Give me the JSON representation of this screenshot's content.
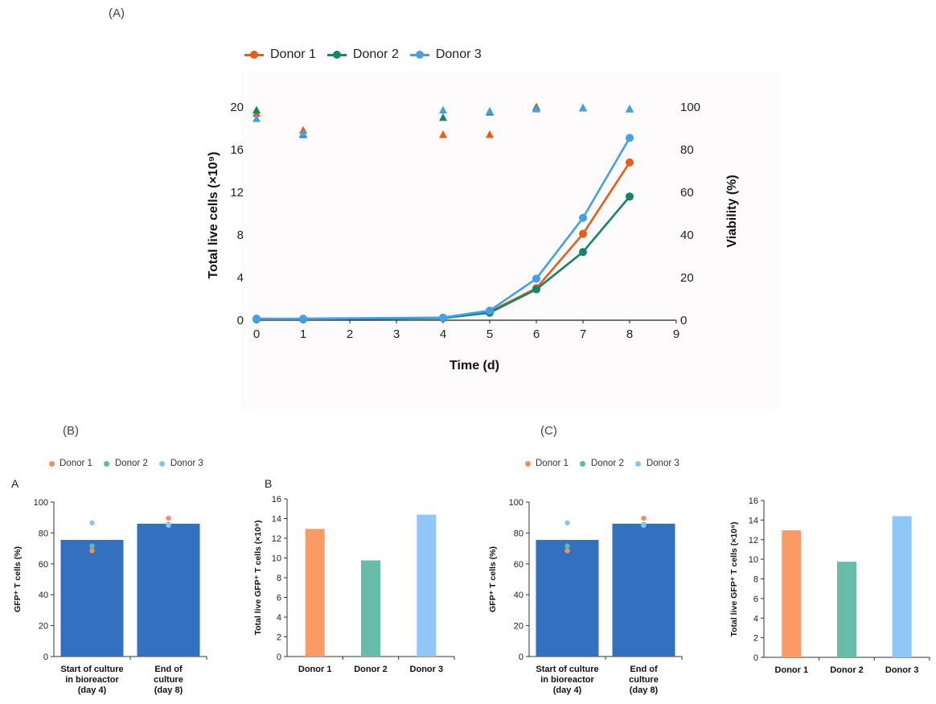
{
  "labels": {
    "a": "(A)",
    "b": "(B)",
    "c": "(C)",
    "b_sub_a": "A",
    "b_sub_b": "B"
  },
  "chart_data": [
    {
      "id": "A",
      "type": "line",
      "xlabel": "Time (d)",
      "ylabel": "Total live cells (×10⁹)",
      "y2label": "Viability (%)",
      "xlim": [
        0,
        9
      ],
      "ylim": [
        0,
        20
      ],
      "y2lim": [
        0,
        100
      ],
      "xticks": [
        0,
        1,
        2,
        3,
        4,
        5,
        6,
        7,
        8,
        9
      ],
      "yticks": [
        0,
        4,
        8,
        12,
        16,
        20
      ],
      "y2ticks": [
        0,
        20,
        40,
        60,
        80,
        100
      ],
      "legend_position": "top",
      "series": [
        {
          "name": "Donor 1",
          "color": "#ea5b17",
          "x": [
            0,
            1,
            4,
            5,
            6,
            7,
            8
          ],
          "values": [
            0.1,
            0.1,
            0.2,
            0.8,
            3.0,
            8.1,
            14.8
          ],
          "viability_x": [
            0,
            1,
            4,
            5,
            6,
            7,
            8
          ],
          "viability": [
            97,
            89,
            87,
            87,
            100,
            99.5,
            99
          ]
        },
        {
          "name": "Donor 2",
          "color": "#138668",
          "x": [
            0,
            1,
            4,
            5,
            6,
            7,
            8
          ],
          "values": [
            0.1,
            0.1,
            0.2,
            0.7,
            2.9,
            6.4,
            11.6
          ],
          "viability_x": [
            0,
            1,
            4,
            5,
            6,
            7,
            8
          ],
          "viability": [
            98.5,
            87,
            95,
            97.5,
            99.5,
            99.5,
            99
          ]
        },
        {
          "name": "Donor 3",
          "color": "#43a1eb",
          "x": [
            0,
            1,
            4,
            5,
            6,
            7,
            8
          ],
          "values": [
            0.15,
            0.15,
            0.25,
            0.9,
            3.9,
            9.6,
            17.1
          ],
          "viability_x": [
            0,
            1,
            4,
            5,
            6,
            7,
            8
          ],
          "viability": [
            94.5,
            87.5,
            98.5,
            98,
            99,
            99.5,
            99
          ]
        }
      ]
    },
    {
      "id": "B-A",
      "type": "bar",
      "ylabel": "GFP⁺ T cells (%)",
      "ylim": [
        0,
        100
      ],
      "yticks": [
        0,
        20,
        40,
        60,
        80,
        100
      ],
      "categories": [
        [
          "Start of culture",
          "in bioreactor",
          "(day 4)"
        ],
        [
          "End of",
          "culture",
          "(day 8)"
        ]
      ],
      "values": [
        75.5,
        86
      ],
      "bar_color": "#3371c0",
      "legend_position": "top",
      "points": [
        {
          "name": "Donor 1",
          "color": "#f98f56",
          "values": [
            68.5,
            89.5
          ]
        },
        {
          "name": "Donor 2",
          "color": "#5bbe9d",
          "values": [
            71.5,
            85.5
          ]
        },
        {
          "name": "Donor 3",
          "color": "#89c4f8",
          "values": [
            86.5,
            85
          ]
        }
      ]
    },
    {
      "id": "B-B",
      "type": "bar",
      "ylabel": "Total live GFP⁺ T cells (×10⁹)",
      "ylim": [
        0,
        16
      ],
      "yticks": [
        0,
        2,
        4,
        6,
        8,
        10,
        12,
        14,
        16
      ],
      "categories": [
        [
          "Donor 1"
        ],
        [
          "Donor 2"
        ],
        [
          "Donor 3"
        ]
      ],
      "values": [
        12.95,
        9.75,
        14.4
      ],
      "colors": [
        "#fc9a66",
        "#67bda8",
        "#8ec8fb"
      ]
    },
    {
      "id": "C-A",
      "type": "bar",
      "ylabel": "GFP⁺ T cells (%)",
      "ylim": [
        0,
        100
      ],
      "yticks": [
        0,
        20,
        40,
        60,
        80,
        100
      ],
      "categories": [
        [
          "Start of culture",
          "in bioreactor",
          "(day 4)"
        ],
        [
          "End of",
          "culture",
          "(day 8)"
        ]
      ],
      "values": [
        75.5,
        86
      ],
      "bar_color": "#3371c0",
      "legend_position": "top",
      "points": [
        {
          "name": "Donor 1",
          "color": "#f98f56",
          "values": [
            68.5,
            89.5
          ]
        },
        {
          "name": "Donor 2",
          "color": "#5bbe9d",
          "values": [
            71.5,
            85.5
          ]
        },
        {
          "name": "Donor 3",
          "color": "#89c4f8",
          "values": [
            86.5,
            85
          ]
        }
      ]
    },
    {
      "id": "C-B",
      "type": "bar",
      "ylabel": "Total live GFP⁺ T cells (×10⁹)",
      "ylim": [
        0,
        16
      ],
      "yticks": [
        0,
        2,
        4,
        6,
        8,
        10,
        12,
        14,
        16
      ],
      "categories": [
        [
          "Donor 1"
        ],
        [
          "Donor 2"
        ],
        [
          "Donor 3"
        ]
      ],
      "values": [
        12.95,
        9.75,
        14.4
      ],
      "colors": [
        "#fc9a66",
        "#67bda8",
        "#8ec8fb"
      ]
    }
  ]
}
